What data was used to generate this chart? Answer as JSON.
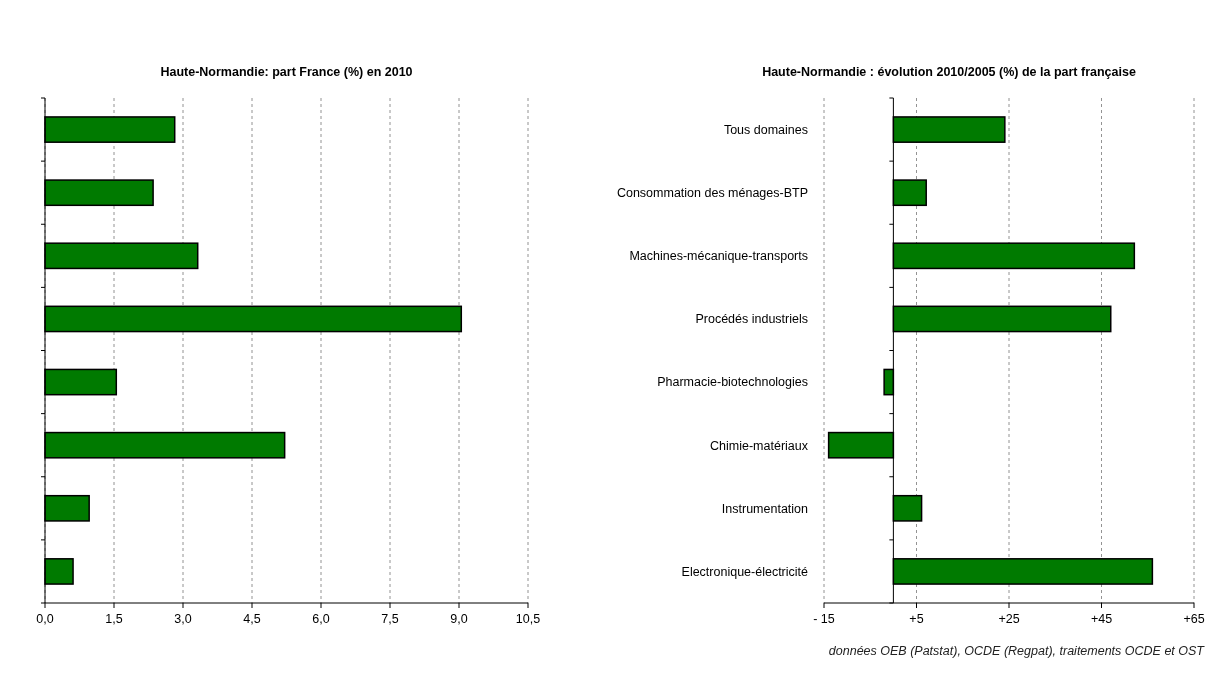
{
  "chart_data": [
    {
      "type": "bar",
      "orientation": "horizontal",
      "title": "Haute-Normandie: part France (%) en 2010",
      "categories": [
        null,
        null,
        null,
        null,
        null,
        null,
        null,
        null
      ],
      "values": [
        2.82,
        2.35,
        3.32,
        9.05,
        1.55,
        5.21,
        0.96,
        0.61
      ],
      "color": "#007a00",
      "xlim": [
        0,
        10.5
      ],
      "xticks": [
        {
          "value": 0,
          "label": "0,0"
        },
        {
          "value": 1.5,
          "label": "1,5"
        },
        {
          "value": 3,
          "label": "3,0"
        },
        {
          "value": 4.5,
          "label": "4,5"
        },
        {
          "value": 6,
          "label": "6,0"
        },
        {
          "value": 7.5,
          "label": "7,5"
        },
        {
          "value": 9,
          "label": "9,0"
        },
        {
          "value": 10.5,
          "label": "10,5"
        }
      ],
      "grid": "x"
    },
    {
      "type": "bar",
      "orientation": "horizontal",
      "title": "Haute-Normandie : évolution 2010/2005 (%) de la part française",
      "categories": [
        "Tous domaines",
        "Consommation des ménages-BTP",
        "Machines-mécanique-transports",
        "Procédés industriels",
        "Pharmacie-biotechnologies",
        "Chimie-matériaux",
        "Instrumentation",
        "Electronique-électricité"
      ],
      "values": [
        24.1,
        7.1,
        52.1,
        47.0,
        -2.0,
        -14.0,
        6.1,
        56.0
      ],
      "color": "#007a00",
      "xlim": [
        -15,
        65
      ],
      "xticks": [
        {
          "value": -15,
          "label": "- 15"
        },
        {
          "value": 5,
          "label": "+5"
        },
        {
          "value": 25,
          "label": "+25"
        },
        {
          "value": 45,
          "label": "+45"
        },
        {
          "value": 65,
          "label": "+65"
        }
      ],
      "grid": "x",
      "annotations": [
        "données OEB (Patstat), OCDE (Regpat), traitements OCDE et OST"
      ]
    }
  ]
}
